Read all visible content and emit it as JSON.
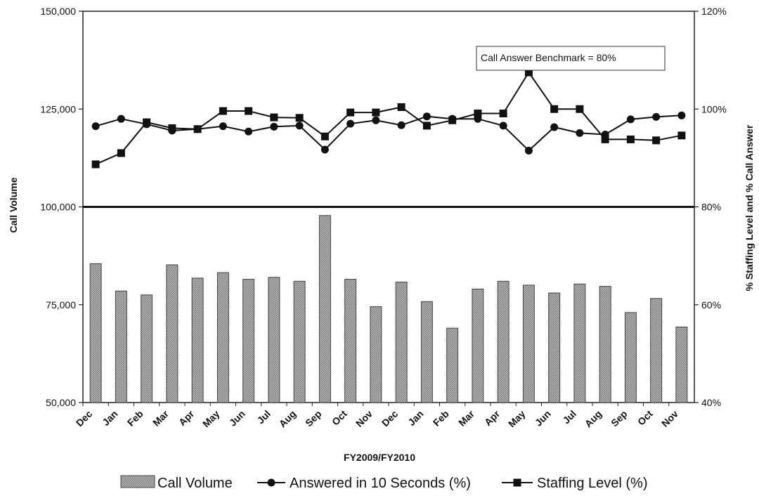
{
  "chart_data": {
    "type": "bar",
    "categories": [
      "Dec",
      "Jan",
      "Feb",
      "Mar",
      "Apr",
      "May",
      "Jun",
      "Jul",
      "Aug",
      "Sep",
      "Oct",
      "Nov",
      "Dec",
      "Jan",
      "Feb",
      "Mar",
      "Apr",
      "May",
      "Jun",
      "Jul",
      "Aug",
      "Sep",
      "Oct",
      "Nov"
    ],
    "xlabel": "FY2009/FY2010",
    "ylabel": "Call Volume",
    "y2label": "% Staffing Level and % Call Answer",
    "ylim": [
      50000,
      150000
    ],
    "y2lim": [
      40,
      120
    ],
    "y_ticks": [
      "50,000",
      "75,000",
      "100,000",
      "125,000",
      "150,000"
    ],
    "y2_ticks": [
      "40%",
      "60%",
      "80%",
      "100%",
      "120%"
    ],
    "benchmark": {
      "label": "Call Answer Benchmark = 80%",
      "value": 80
    },
    "series": [
      {
        "name": "Call Volume",
        "type": "bar",
        "axis": "left",
        "values": [
          85500,
          78500,
          77500,
          85200,
          81800,
          83200,
          81500,
          82000,
          81000,
          97800,
          81500,
          74500,
          80800,
          75800,
          69000,
          79000,
          81000,
          80000,
          78000,
          80300,
          79700,
          73000,
          76600,
          69300
        ]
      },
      {
        "name": "Answered in 10 Seconds (%)",
        "type": "line",
        "axis": "right",
        "marker": "circle",
        "values": [
          96.5,
          98,
          96.9,
          95.6,
          95.9,
          96.5,
          95.4,
          96.4,
          96.6,
          91.7,
          97,
          97.7,
          96.7,
          98.5,
          98,
          98,
          96.6,
          91.5,
          96.3,
          95.1,
          94.8,
          97.9,
          98.4,
          98.7
        ]
      },
      {
        "name": "Staffing Level (%)",
        "type": "line",
        "axis": "right",
        "marker": "square",
        "values": [
          88.7,
          91,
          97.3,
          96.1,
          95.9,
          99.6,
          99.6,
          98.3,
          98.2,
          94.4,
          99.3,
          99.3,
          100.4,
          96.6,
          97.7,
          99.1,
          99.1,
          107.5,
          100,
          100,
          93.8,
          93.8,
          93.6,
          94.6
        ]
      }
    ],
    "grid": false,
    "legend_position": "bottom"
  }
}
